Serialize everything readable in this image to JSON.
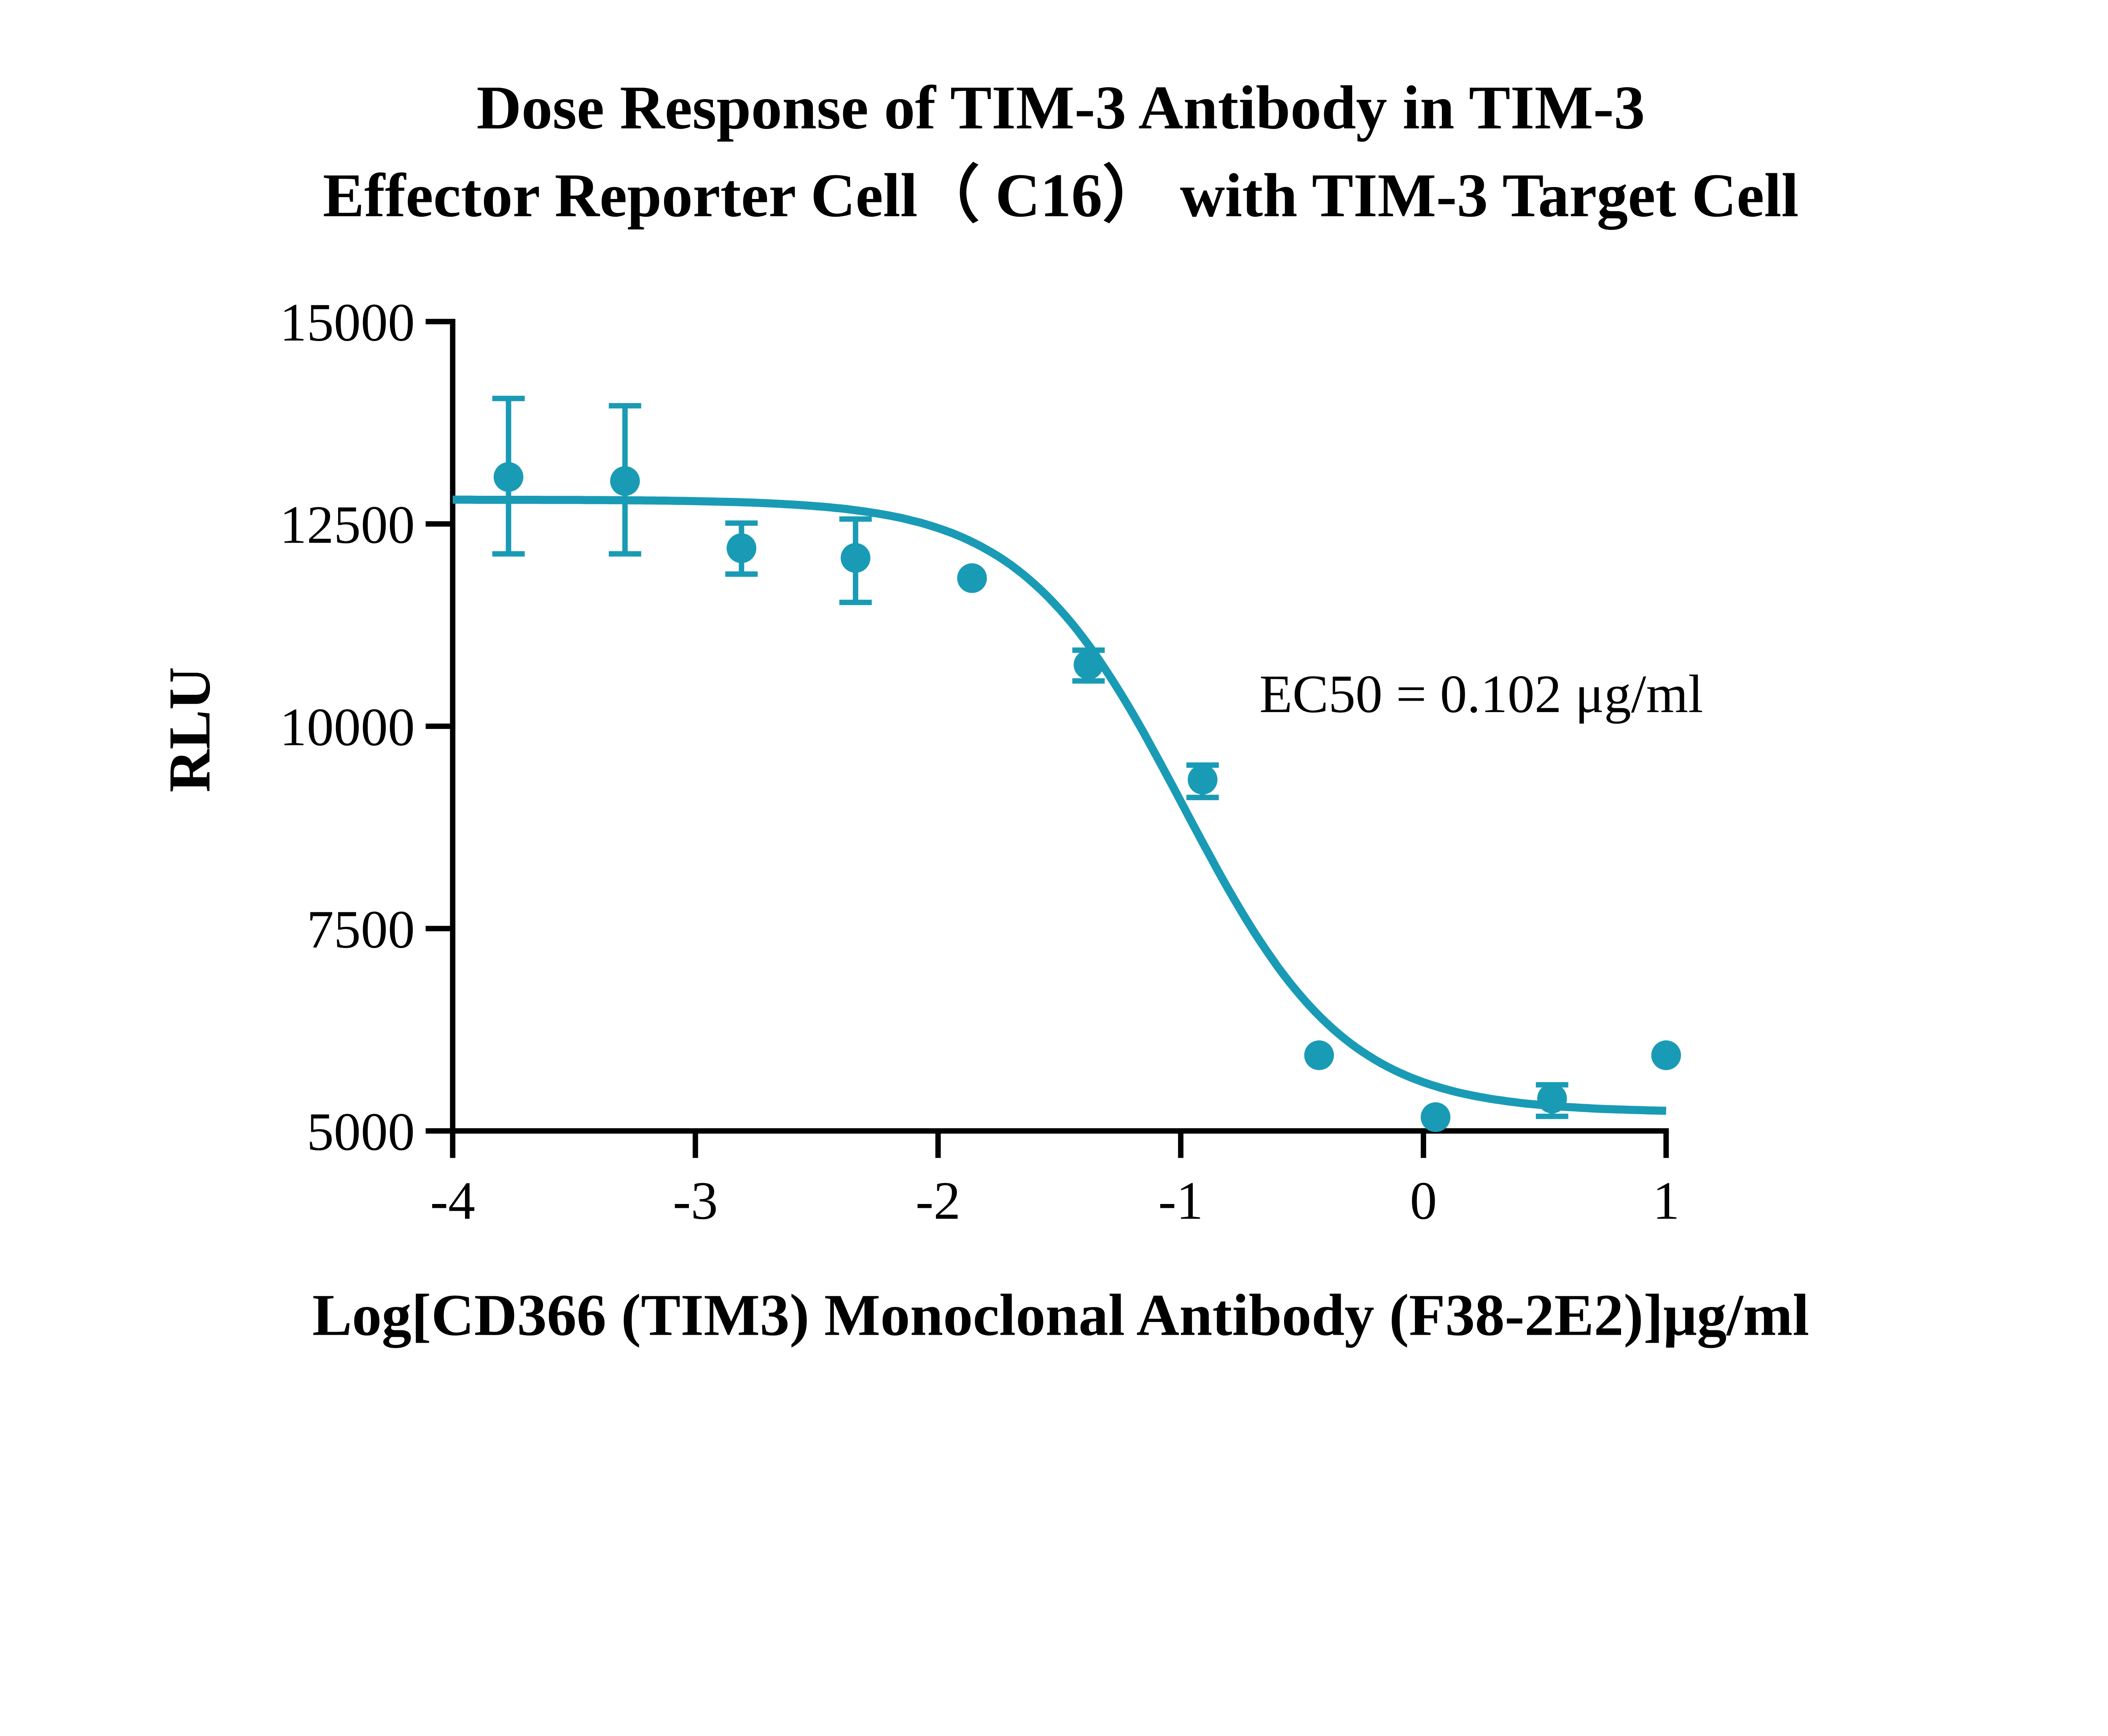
{
  "chart_data": {
    "type": "scatter",
    "title": [
      "Dose Response of TIM-3 Antibody in TIM-3",
      "Effector Reporter Cell（ C16） with TIM-3 Target Cell"
    ],
    "xlabel": "Log[CD366 (TIM3) Monoclonal Antibody (F38-2E2)]μg/ml",
    "ylabel": "RLU",
    "xlim": [
      -4,
      1
    ],
    "ylim": [
      5000,
      15000
    ],
    "xticks": [
      "-4",
      "-3",
      "-2",
      "-1",
      "0",
      "1"
    ],
    "yticks": [
      "5000",
      "7500",
      "10000",
      "12500",
      "15000"
    ],
    "grid": false,
    "color": "#1a9bb5",
    "annotation": "EC50 = 0.102 μg/ml",
    "points": [
      {
        "x": -3.77,
        "y": 13080,
        "err_low": 12130,
        "err_high": 14050
      },
      {
        "x": -3.29,
        "y": 13030,
        "err_low": 12130,
        "err_high": 13960
      },
      {
        "x": -2.81,
        "y": 12200,
        "err_low": 11880,
        "err_high": 12510
      },
      {
        "x": -2.34,
        "y": 12080,
        "err_low": 11530,
        "err_high": 12560
      },
      {
        "x": -1.86,
        "y": 11830
      },
      {
        "x": -1.38,
        "y": 10760,
        "err_low": 10560,
        "err_high": 10940
      },
      {
        "x": -0.91,
        "y": 9340,
        "err_low": 9120,
        "err_high": 9520
      },
      {
        "x": -0.43,
        "y": 5935
      },
      {
        "x": 0.05,
        "y": 5170
      },
      {
        "x": 0.53,
        "y": 5400,
        "err_low": 5180,
        "err_high": 5570
      },
      {
        "x": 1.0,
        "y": 5935
      }
    ],
    "fit": {
      "model": "4PL",
      "top": 12800,
      "bottom": 5230,
      "logEC50": -0.99,
      "hill": 1.3,
      "x_range": [
        -4,
        1
      ]
    }
  }
}
